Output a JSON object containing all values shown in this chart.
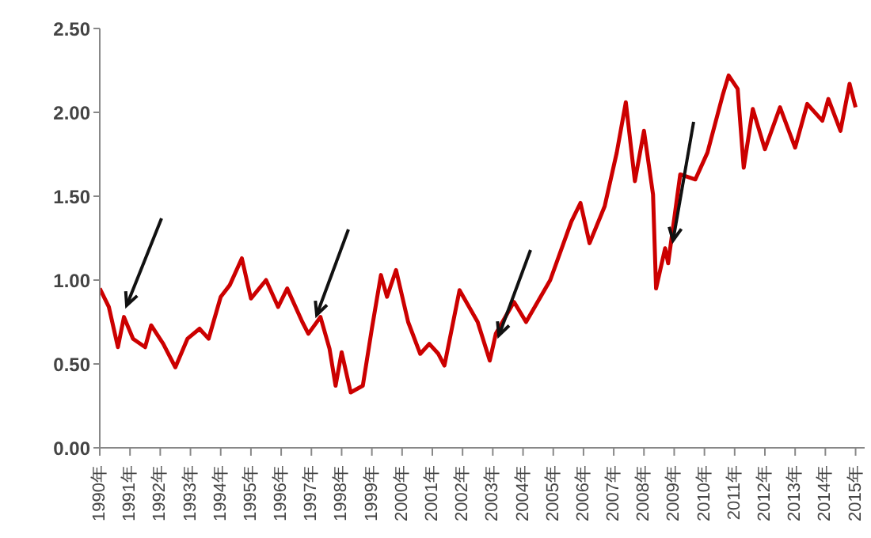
{
  "chart_data": {
    "type": "line",
    "legend": false,
    "grid": false,
    "x": [
      1990.0,
      1990.3,
      1990.6,
      1990.8,
      1991.1,
      1991.5,
      1991.7,
      1992.1,
      1992.5,
      1992.9,
      1993.3,
      1993.6,
      1994.0,
      1994.3,
      1994.7,
      1995.0,
      1995.5,
      1995.9,
      1996.2,
      1996.7,
      1996.9,
      1997.3,
      1997.6,
      1997.8,
      1998.0,
      1998.3,
      1998.7,
      1999.0,
      1999.3,
      1999.5,
      1999.8,
      2000.2,
      2000.6,
      2000.9,
      2001.2,
      2001.4,
      2001.9,
      2002.5,
      2002.9,
      2003.1,
      2003.7,
      2004.1,
      2004.9,
      2005.6,
      2005.9,
      2006.2,
      2006.7,
      2007.1,
      2007.4,
      2007.7,
      2008.0,
      2008.3,
      2008.4,
      2008.7,
      2008.8,
      2009.2,
      2009.7,
      2010.1,
      2010.6,
      2010.8,
      2011.1,
      2011.3,
      2011.6,
      2012.0,
      2012.5,
      2013.0,
      2013.4,
      2013.9,
      2014.1,
      2014.5,
      2014.8,
      2015.0
    ],
    "series": [
      {
        "color": "#cc0000",
        "values": [
          0.95,
          0.84,
          0.6,
          0.78,
          0.65,
          0.6,
          0.73,
          0.62,
          0.48,
          0.65,
          0.71,
          0.65,
          0.9,
          0.97,
          1.13,
          0.89,
          1.0,
          0.84,
          0.95,
          0.75,
          0.68,
          0.78,
          0.59,
          0.37,
          0.57,
          0.33,
          0.37,
          0.71,
          1.03,
          0.9,
          1.06,
          0.75,
          0.56,
          0.62,
          0.56,
          0.49,
          0.94,
          0.75,
          0.52,
          0.68,
          0.87,
          0.75,
          1.0,
          1.35,
          1.46,
          1.22,
          1.44,
          1.76,
          2.06,
          1.59,
          1.89,
          1.51,
          0.95,
          1.19,
          1.1,
          1.63,
          1.6,
          1.76,
          2.1,
          2.22,
          2.14,
          1.67,
          2.02,
          1.78,
          2.03,
          1.79,
          2.05,
          1.95,
          2.08,
          1.89,
          2.17,
          2.03
        ]
      }
    ],
    "xlim": [
      1990,
      2015.3
    ],
    "xticks": [
      {
        "value": 1990,
        "label": "1990年"
      },
      {
        "value": 1991,
        "label": "1991年"
      },
      {
        "value": 1992,
        "label": "1992年"
      },
      {
        "value": 1993,
        "label": "1993年"
      },
      {
        "value": 1994,
        "label": "1994年"
      },
      {
        "value": 1995,
        "label": "1995年"
      },
      {
        "value": 1996,
        "label": "1996年"
      },
      {
        "value": 1997,
        "label": "1997年"
      },
      {
        "value": 1998,
        "label": "1998年"
      },
      {
        "value": 1999,
        "label": "1999年"
      },
      {
        "value": 2000,
        "label": "2000年"
      },
      {
        "value": 2001,
        "label": "2001年"
      },
      {
        "value": 2002,
        "label": "2002年"
      },
      {
        "value": 2003,
        "label": "2003年"
      },
      {
        "value": 2004,
        "label": "2004年"
      },
      {
        "value": 2005,
        "label": "2005年"
      },
      {
        "value": 2006,
        "label": "2006年"
      },
      {
        "value": 2007,
        "label": "2007年"
      },
      {
        "value": 2008,
        "label": "2008年"
      },
      {
        "value": 2009,
        "label": "2009年"
      },
      {
        "value": 2010,
        "label": "2010年"
      },
      {
        "value": 2011,
        "label": "2011年"
      },
      {
        "value": 2012,
        "label": "2012年"
      },
      {
        "value": 2013,
        "label": "2013年"
      },
      {
        "value": 2014,
        "label": "2014年"
      },
      {
        "value": 2015,
        "label": "2015年"
      }
    ],
    "ylim": [
      0,
      2.5
    ],
    "yticks": [
      {
        "value": 0,
        "label": "0.00"
      },
      {
        "value": 0.5,
        "label": "0.50"
      },
      {
        "value": 1,
        "label": "1.00"
      },
      {
        "value": 1.5,
        "label": "1.50"
      },
      {
        "value": 2,
        "label": "2.00"
      },
      {
        "value": 2.5,
        "label": "2.50"
      }
    ]
  }
}
